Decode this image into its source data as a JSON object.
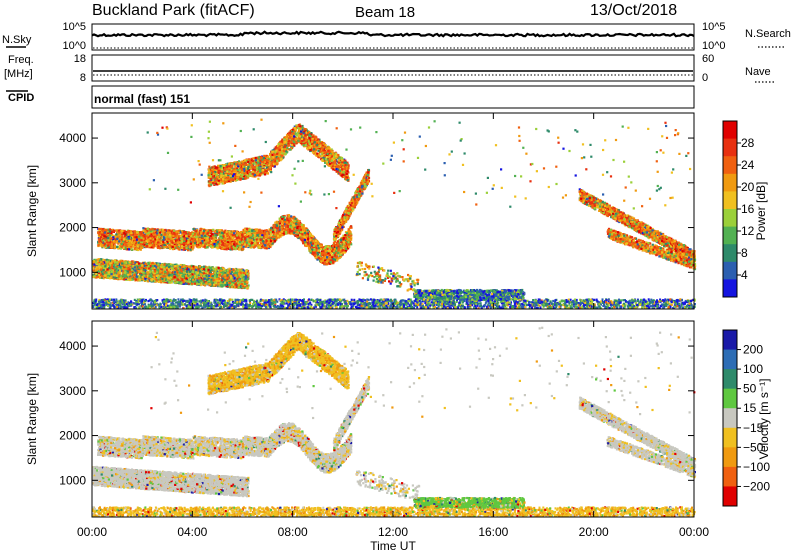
{
  "header": {
    "radar": "Buckland Park (fitACF)",
    "beam": "Beam 18",
    "date": "13/Oct/2018"
  },
  "strip_sky": {
    "left_label": "N.Sky",
    "right_label": "N.Search",
    "tick_top": "10^5",
    "tick_bottom": "10^0",
    "tick_top_right": "10^5",
    "tick_bottom_right": "10^0"
  },
  "strip_freq": {
    "left_label_1": "Freq.",
    "left_label_2": "[MHz]",
    "tick_top": "18",
    "tick_bottom": "8",
    "right_label": "Nave",
    "tick_top_right": "60",
    "tick_bottom_right": "0"
  },
  "strip_cpid": {
    "left_label": "CPID",
    "mode_text": "normal (fast) 151"
  },
  "x_axis": {
    "label": "Time UT",
    "ticks": [
      "00:00",
      "04:00",
      "08:00",
      "12:00",
      "16:00",
      "20:00",
      "00:00"
    ]
  },
  "chart_data": [
    {
      "type": "heatmap",
      "ylabel": "Slant Range [km]",
      "xlabel": "",
      "xlim": [
        0,
        24
      ],
      "ylim": [
        180,
        4560
      ],
      "yticks": [
        "1000",
        "2000",
        "3000",
        "4000"
      ],
      "colorbar": {
        "label": "Power [dB]",
        "ticks": [
          "4",
          "8",
          "12",
          "16",
          "20",
          "24",
          "28"
        ],
        "colors": [
          "#1515e0",
          "#2b5fb0",
          "#2e8a6a",
          "#52b152",
          "#9bd03a",
          "#f0c020",
          "#f09a10",
          "#f06010",
          "#e83010",
          "#e00000"
        ]
      }
    },
    {
      "type": "heatmap",
      "ylabel": "Slant Range [km]",
      "xlabel": "Time UT",
      "xlim": [
        0,
        24
      ],
      "ylim": [
        180,
        4560
      ],
      "yticks": [
        "1000",
        "2000",
        "3000",
        "4000"
      ],
      "colorbar": {
        "label": "Velocity [m s⁻¹]",
        "ticks": [
          "200",
          "100",
          "50",
          "15",
          "−15",
          "−50",
          "−100",
          "−200"
        ],
        "colors": [
          "#1a1aa8",
          "#2d6db5",
          "#2e8a6a",
          "#5fc840",
          "#c8c8c0",
          "#f0c020",
          "#f09a10",
          "#f06010",
          "#e00000"
        ]
      }
    }
  ]
}
